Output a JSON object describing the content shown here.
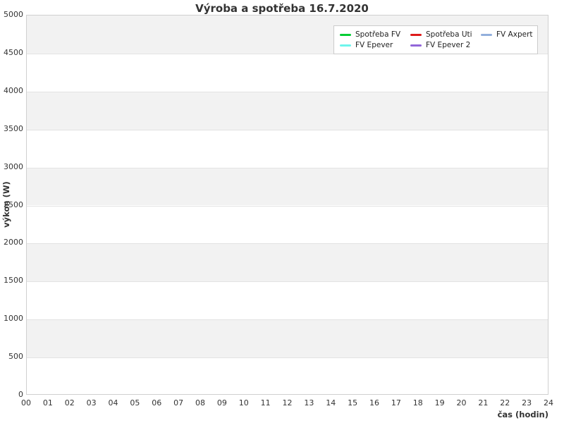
{
  "chart": {
    "title": "Výroba a spotřeba 16.7.2020",
    "x_axis_title": "čas (hodin)",
    "y_axis_title": "výkon (W)"
  },
  "chart_data": {
    "type": "line",
    "title": "Výroba a spotřeba 16.7.2020",
    "xlabel": "čas (hodin)",
    "ylabel": "výkon (W)",
    "xlim": [
      0,
      24
    ],
    "ylim": [
      0,
      5000
    ],
    "xtick_labels": [
      "00",
      "01",
      "02",
      "03",
      "04",
      "05",
      "06",
      "07",
      "08",
      "09",
      "10",
      "11",
      "12",
      "13",
      "14",
      "15",
      "16",
      "17",
      "18",
      "19",
      "20",
      "21",
      "22",
      "23",
      "24"
    ],
    "ytick_values": [
      0,
      500,
      1000,
      1500,
      2000,
      2500,
      3000,
      3500,
      4000,
      4500,
      5000
    ],
    "grid": "horizontal",
    "alternating_band_color": "#f2f2f2",
    "legend_position": "top-right-inside",
    "data_visible": false,
    "series": [
      {
        "name": "Spotřeba FV",
        "color": "#00cc33",
        "values": []
      },
      {
        "name": "Spotřeba Uti",
        "color": "#de1a1a",
        "values": []
      },
      {
        "name": "FV Axpert",
        "color": "#92afdc",
        "values": []
      },
      {
        "name": "FV Epever",
        "color": "#6ef5ec",
        "values": []
      },
      {
        "name": "FV Epever 2",
        "color": "#9266d9",
        "values": []
      }
    ]
  }
}
